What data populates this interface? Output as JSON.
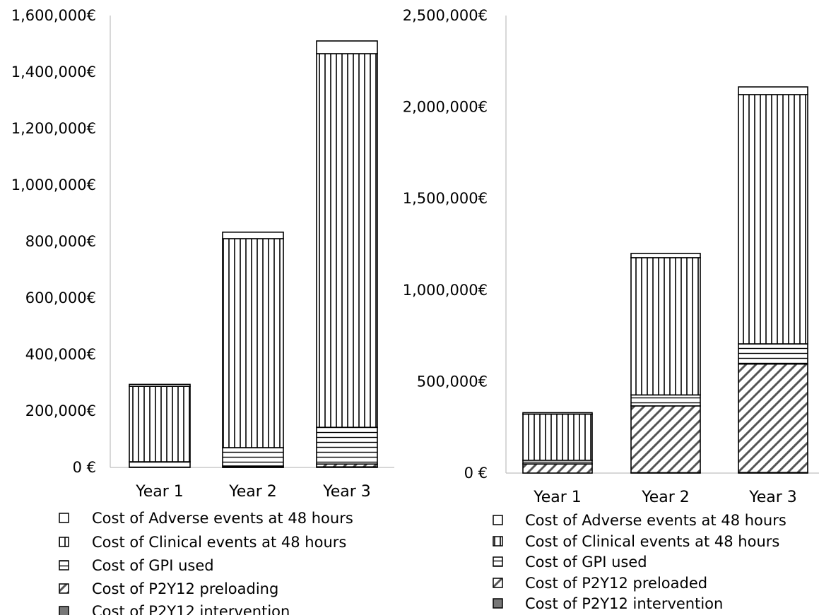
{
  "chart_data": [
    {
      "type": "bar",
      "stacked": true,
      "categories": [
        "Year 1",
        "Year 2",
        "Year 3"
      ],
      "ylim": [
        0,
        1600000
      ],
      "yticks": [
        {
          "value": 0,
          "label": "0 €"
        },
        {
          "value": 200000,
          "label": "200,000€"
        },
        {
          "value": 400000,
          "label": "400,000€"
        },
        {
          "value": 600000,
          "label": "600,000€"
        },
        {
          "value": 800000,
          "label": "800,000€"
        },
        {
          "value": 1000000,
          "label": "1,000,000€"
        },
        {
          "value": 1200000,
          "label": "1,200,000€"
        },
        {
          "value": 1400000,
          "label": "1,400,000€"
        },
        {
          "value": 1600000,
          "label": "1,600,000€"
        }
      ],
      "legend_position": "bottom",
      "series": [
        {
          "name": "Cost of P2Y12 intervention",
          "pattern": "solid",
          "values": [
            0,
            1000,
            2000
          ]
        },
        {
          "name": "Cost of P2Y12 preloading",
          "pattern": "diagonal",
          "values": [
            0,
            4000,
            10000
          ]
        },
        {
          "name": "Cost of GPI used",
          "pattern": "horizontal",
          "values": [
            20000,
            65000,
            130000
          ]
        },
        {
          "name": "Cost of Clinical events at 48 hours",
          "pattern": "vertical",
          "values": [
            267000,
            740000,
            1323000
          ]
        },
        {
          "name": "Cost of Adverse events at 48 hours",
          "pattern": "empty",
          "values": [
            7000,
            23000,
            45000
          ]
        }
      ]
    },
    {
      "type": "bar",
      "stacked": true,
      "categories": [
        "Year 1",
        "Year 2",
        "Year 3"
      ],
      "ylim": [
        0,
        2500000
      ],
      "yticks": [
        {
          "value": 0,
          "label": "0 €"
        },
        {
          "value": 500000,
          "label": "500,000€"
        },
        {
          "value": 1000000,
          "label": "1,000,000€"
        },
        {
          "value": 1500000,
          "label": "1,500,000€"
        },
        {
          "value": 2000000,
          "label": "2,000,000€"
        },
        {
          "value": 2500000,
          "label": "2,500,000€"
        }
      ],
      "legend_position": "bottom",
      "series": [
        {
          "name": "Cost of P2Y12 intervention",
          "pattern": "solid",
          "values": [
            0,
            2000,
            3000
          ]
        },
        {
          "name": "Cost of P2Y12 preloaded",
          "pattern": "diagonal",
          "values": [
            50000,
            365000,
            593000
          ]
        },
        {
          "name": "Cost of GPI used",
          "pattern": "horizontal",
          "values": [
            20000,
            60000,
            110000
          ]
        },
        {
          "name": "Cost of Clinical events at 48 hours",
          "pattern": "vertical",
          "values": [
            252000,
            750000,
            1362000
          ]
        },
        {
          "name": "Cost of Adverse events at 48 hours",
          "pattern": "empty",
          "values": [
            8000,
            23000,
            42000
          ]
        }
      ]
    }
  ]
}
